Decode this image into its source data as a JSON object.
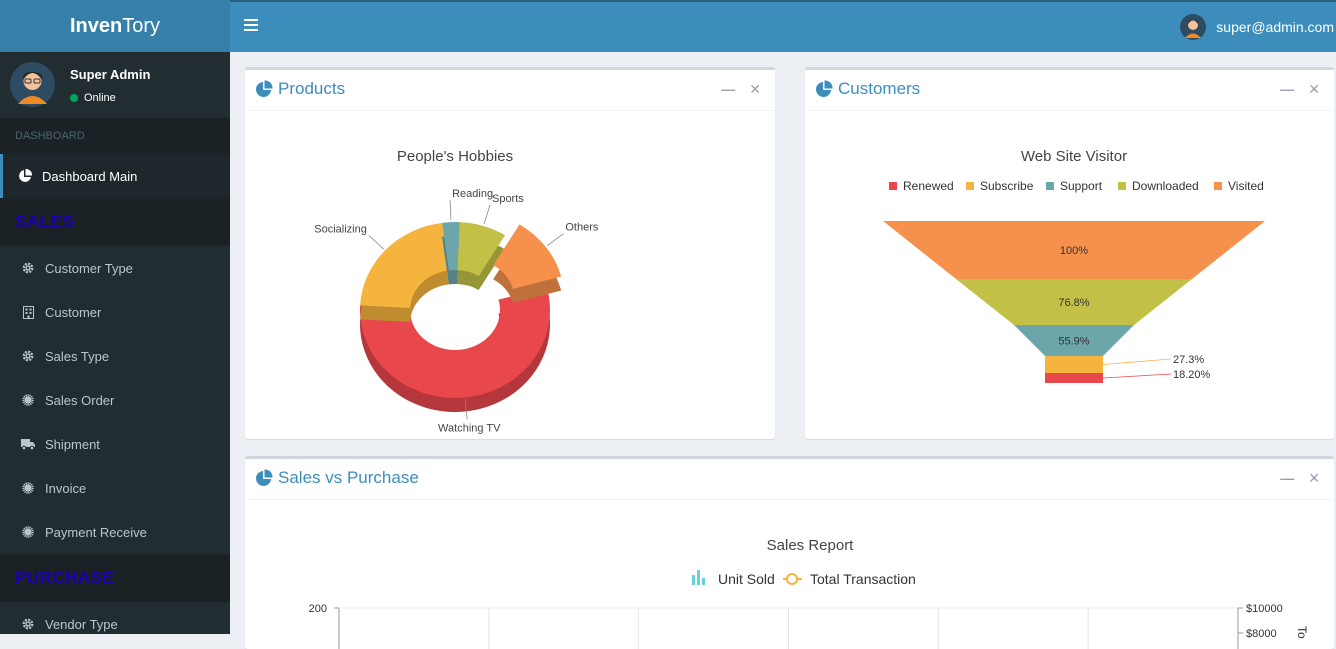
{
  "app": {
    "logo_bold": "Inven",
    "logo_rest": "Tory"
  },
  "topbar": {
    "user_email": "super@admin.com"
  },
  "sidebar": {
    "user_name": "Super Admin",
    "user_status": "Online",
    "header_dashboard": "DASHBOARD",
    "item_dashboard_main": "Dashboard Main",
    "header_sales": "SALES",
    "sales_items": [
      "Customer Type",
      "Customer",
      "Sales Type",
      "Sales Order",
      "Shipment",
      "Invoice",
      "Payment Receive"
    ],
    "header_purchase": "PURCHASE",
    "item_vendor_type": "Vendor Type"
  },
  "products_box": {
    "title": "Products"
  },
  "customers_box": {
    "title": "Customers"
  },
  "sales_box": {
    "title": "Sales vs Purchase"
  },
  "chart_data": [
    {
      "type": "pie",
      "title": "People's Hobbies",
      "labels": [
        "Watching TV",
        "Socializing",
        "Reading",
        "Sports",
        "Others"
      ],
      "values": [
        55,
        22,
        3,
        8,
        12
      ],
      "colors": [
        "#e8474c",
        "#f5b43d",
        "#6ca6aa",
        "#c2c047",
        "#f5914c"
      ]
    },
    {
      "type": "funnel",
      "title": "Web Site Visitor",
      "legend": [
        "Renewed",
        "Subscribe",
        "Support",
        "Downloaded",
        "Visited"
      ],
      "legend_colors": [
        "#e8474c",
        "#f5b43d",
        "#6ca6aa",
        "#c2c047",
        "#f5914c"
      ],
      "stages": [
        "Visited",
        "Downloaded",
        "Support",
        "Subscribe",
        "Renewed"
      ],
      "values": [
        100,
        76.8,
        55.9,
        27.3,
        18.2
      ],
      "value_labels": [
        "100%",
        "76.8%",
        "55.9%",
        "27.3%",
        "18.20%"
      ]
    },
    {
      "type": "bar",
      "title": "Sales Report",
      "legend": [
        "Unit Sold",
        "Total Transaction"
      ],
      "y_left_tick_labels": [
        "200"
      ],
      "y_right_tick_labels": [
        "$10000",
        "$8000"
      ],
      "y_right_label": "To"
    }
  ]
}
